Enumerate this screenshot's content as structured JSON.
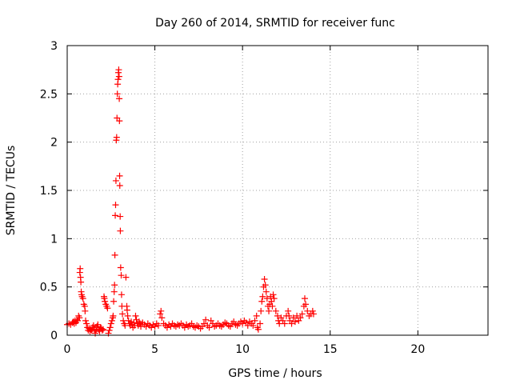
{
  "chart_data": {
    "type": "scatter",
    "title": "Day 260 of 2014, SRMTID for receiver func",
    "xlabel": "GPS time / hours",
    "ylabel": "SRMTID / TECUs",
    "xlim": [
      0,
      24
    ],
    "ylim": [
      0,
      3
    ],
    "xticks": [
      0,
      5,
      10,
      15,
      20
    ],
    "xtick_labels": [
      "0",
      "5",
      "10",
      "15",
      "20"
    ],
    "yticks": [
      0,
      0.5,
      1,
      1.5,
      2,
      2.5,
      3
    ],
    "ytick_labels": [
      "0",
      "0.5",
      "1",
      "1.5",
      "2",
      "2.5",
      "3"
    ],
    "grid": true,
    "marker": "+",
    "color": "#ff0000",
    "series": [
      {
        "name": "SRMTID",
        "points": [
          [
            0.0,
            0.11
          ],
          [
            0.1,
            0.12
          ],
          [
            0.2,
            0.11
          ],
          [
            0.3,
            0.13
          ],
          [
            0.35,
            0.14
          ],
          [
            0.4,
            0.12
          ],
          [
            0.45,
            0.15
          ],
          [
            0.5,
            0.13
          ],
          [
            0.55,
            0.16
          ],
          [
            0.6,
            0.15
          ],
          [
            0.65,
            0.2
          ],
          [
            0.7,
            0.18
          ],
          [
            0.72,
            0.65
          ],
          [
            0.74,
            0.69
          ],
          [
            0.76,
            0.6
          ],
          [
            0.78,
            0.55
          ],
          [
            0.8,
            0.45
          ],
          [
            0.82,
            0.42
          ],
          [
            0.85,
            0.4
          ],
          [
            0.9,
            0.38
          ],
          [
            0.95,
            0.32
          ],
          [
            1.0,
            0.3
          ],
          [
            1.02,
            0.25
          ],
          [
            1.05,
            0.15
          ],
          [
            1.1,
            0.12
          ],
          [
            1.15,
            0.08
          ],
          [
            1.2,
            0.05
          ],
          [
            1.25,
            0.07
          ],
          [
            1.3,
            0.04
          ],
          [
            1.35,
            0.06
          ],
          [
            1.4,
            0.05
          ],
          [
            1.45,
            0.08
          ],
          [
            1.5,
            0.1
          ],
          [
            1.55,
            0.06
          ],
          [
            1.6,
            0.02
          ],
          [
            1.65,
            0.05
          ],
          [
            1.7,
            0.09
          ],
          [
            1.75,
            0.11
          ],
          [
            1.8,
            0.06
          ],
          [
            1.85,
            0.04
          ],
          [
            1.9,
            0.08
          ],
          [
            1.95,
            0.07
          ],
          [
            2.0,
            0.05
          ],
          [
            2.05,
            0.06
          ],
          [
            2.1,
            0.4
          ],
          [
            2.12,
            0.38
          ],
          [
            2.15,
            0.35
          ],
          [
            2.2,
            0.32
          ],
          [
            2.25,
            0.3
          ],
          [
            2.3,
            0.28
          ],
          [
            2.35,
            0.02
          ],
          [
            2.4,
            0.05
          ],
          [
            2.45,
            0.08
          ],
          [
            2.5,
            0.12
          ],
          [
            2.55,
            0.15
          ],
          [
            2.6,
            0.18
          ],
          [
            2.62,
            0.2
          ],
          [
            2.65,
            0.35
          ],
          [
            2.68,
            0.45
          ],
          [
            2.7,
            0.52
          ],
          [
            2.72,
            0.83
          ],
          [
            2.74,
            1.24
          ],
          [
            2.76,
            1.35
          ],
          [
            2.78,
            1.6
          ],
          [
            2.8,
            2.02
          ],
          [
            2.82,
            2.05
          ],
          [
            2.84,
            2.25
          ],
          [
            2.86,
            2.5
          ],
          [
            2.88,
            2.6
          ],
          [
            2.9,
            2.65
          ],
          [
            2.92,
            2.72
          ],
          [
            2.94,
            2.75
          ],
          [
            2.96,
            2.68
          ],
          [
            2.97,
            2.45
          ],
          [
            2.98,
            2.22
          ],
          [
            2.99,
            1.65
          ],
          [
            3.0,
            1.55
          ],
          [
            3.02,
            1.23
          ],
          [
            3.03,
            1.08
          ],
          [
            3.05,
            0.7
          ],
          [
            3.08,
            0.62
          ],
          [
            3.1,
            0.42
          ],
          [
            3.12,
            0.3
          ],
          [
            3.15,
            0.22
          ],
          [
            3.2,
            0.15
          ],
          [
            3.25,
            0.12
          ],
          [
            3.3,
            0.1
          ],
          [
            3.35,
            0.6
          ],
          [
            3.4,
            0.3
          ],
          [
            3.42,
            0.26
          ],
          [
            3.45,
            0.2
          ],
          [
            3.5,
            0.15
          ],
          [
            3.55,
            0.12
          ],
          [
            3.6,
            0.1
          ],
          [
            3.65,
            0.14
          ],
          [
            3.7,
            0.11
          ],
          [
            3.75,
            0.08
          ],
          [
            3.8,
            0.13
          ],
          [
            3.85,
            0.1
          ],
          [
            3.9,
            0.2
          ],
          [
            3.95,
            0.16
          ],
          [
            4.0,
            0.12
          ],
          [
            4.05,
            0.1
          ],
          [
            4.1,
            0.14
          ],
          [
            4.15,
            0.12
          ],
          [
            4.2,
            0.09
          ],
          [
            4.3,
            0.13
          ],
          [
            4.4,
            0.11
          ],
          [
            4.5,
            0.09
          ],
          [
            4.6,
            0.12
          ],
          [
            4.7,
            0.1
          ],
          [
            4.8,
            0.08
          ],
          [
            4.9,
            0.11
          ],
          [
            5.0,
            0.09
          ],
          [
            5.1,
            0.12
          ],
          [
            5.2,
            0.1
          ],
          [
            5.3,
            0.22
          ],
          [
            5.35,
            0.25
          ],
          [
            5.4,
            0.18
          ],
          [
            5.5,
            0.12
          ],
          [
            5.6,
            0.1
          ],
          [
            5.7,
            0.08
          ],
          [
            5.8,
            0.11
          ],
          [
            5.9,
            0.09
          ],
          [
            6.0,
            0.12
          ],
          [
            6.1,
            0.1
          ],
          [
            6.2,
            0.09
          ],
          [
            6.3,
            0.11
          ],
          [
            6.4,
            0.1
          ],
          [
            6.5,
            0.12
          ],
          [
            6.6,
            0.1
          ],
          [
            6.7,
            0.08
          ],
          [
            6.8,
            0.11
          ],
          [
            6.9,
            0.09
          ],
          [
            7.0,
            0.1
          ],
          [
            7.1,
            0.12
          ],
          [
            7.2,
            0.09
          ],
          [
            7.3,
            0.08
          ],
          [
            7.4,
            0.1
          ],
          [
            7.5,
            0.09
          ],
          [
            7.6,
            0.07
          ],
          [
            7.7,
            0.09
          ],
          [
            7.8,
            0.12
          ],
          [
            7.9,
            0.16
          ],
          [
            8.0,
            0.1
          ],
          [
            8.1,
            0.08
          ],
          [
            8.2,
            0.15
          ],
          [
            8.3,
            0.12
          ],
          [
            8.4,
            0.09
          ],
          [
            8.5,
            0.1
          ],
          [
            8.6,
            0.12
          ],
          [
            8.7,
            0.1
          ],
          [
            8.8,
            0.09
          ],
          [
            8.9,
            0.11
          ],
          [
            9.0,
            0.13
          ],
          [
            9.1,
            0.12
          ],
          [
            9.2,
            0.1
          ],
          [
            9.3,
            0.09
          ],
          [
            9.4,
            0.12
          ],
          [
            9.5,
            0.14
          ],
          [
            9.6,
            0.11
          ],
          [
            9.7,
            0.1
          ],
          [
            9.8,
            0.12
          ],
          [
            9.9,
            0.14
          ],
          [
            10.0,
            0.12
          ],
          [
            10.1,
            0.15
          ],
          [
            10.2,
            0.13
          ],
          [
            10.3,
            0.1
          ],
          [
            10.4,
            0.14
          ],
          [
            10.5,
            0.12
          ],
          [
            10.6,
            0.1
          ],
          [
            10.7,
            0.15
          ],
          [
            10.8,
            0.2
          ],
          [
            10.85,
            0.08
          ],
          [
            10.9,
            0.06
          ],
          [
            11.0,
            0.12
          ],
          [
            11.05,
            0.25
          ],
          [
            11.1,
            0.35
          ],
          [
            11.15,
            0.4
          ],
          [
            11.2,
            0.5
          ],
          [
            11.25,
            0.58
          ],
          [
            11.3,
            0.52
          ],
          [
            11.35,
            0.45
          ],
          [
            11.4,
            0.38
          ],
          [
            11.45,
            0.3
          ],
          [
            11.5,
            0.25
          ],
          [
            11.55,
            0.32
          ],
          [
            11.6,
            0.4
          ],
          [
            11.65,
            0.35
          ],
          [
            11.7,
            0.3
          ],
          [
            11.75,
            0.42
          ],
          [
            11.8,
            0.38
          ],
          [
            11.9,
            0.25
          ],
          [
            12.0,
            0.2
          ],
          [
            12.05,
            0.15
          ],
          [
            12.1,
            0.12
          ],
          [
            12.2,
            0.18
          ],
          [
            12.3,
            0.15
          ],
          [
            12.4,
            0.12
          ],
          [
            12.5,
            0.2
          ],
          [
            12.6,
            0.25
          ],
          [
            12.65,
            0.2
          ],
          [
            12.7,
            0.15
          ],
          [
            12.8,
            0.12
          ],
          [
            12.9,
            0.18
          ],
          [
            13.0,
            0.14
          ],
          [
            13.1,
            0.2
          ],
          [
            13.2,
            0.15
          ],
          [
            13.3,
            0.18
          ],
          [
            13.4,
            0.22
          ],
          [
            13.5,
            0.3
          ],
          [
            13.55,
            0.38
          ],
          [
            13.6,
            0.32
          ],
          [
            13.7,
            0.25
          ],
          [
            13.8,
            0.2
          ],
          [
            13.9,
            0.22
          ],
          [
            14.0,
            0.25
          ],
          [
            14.05,
            0.22
          ]
        ]
      }
    ]
  }
}
